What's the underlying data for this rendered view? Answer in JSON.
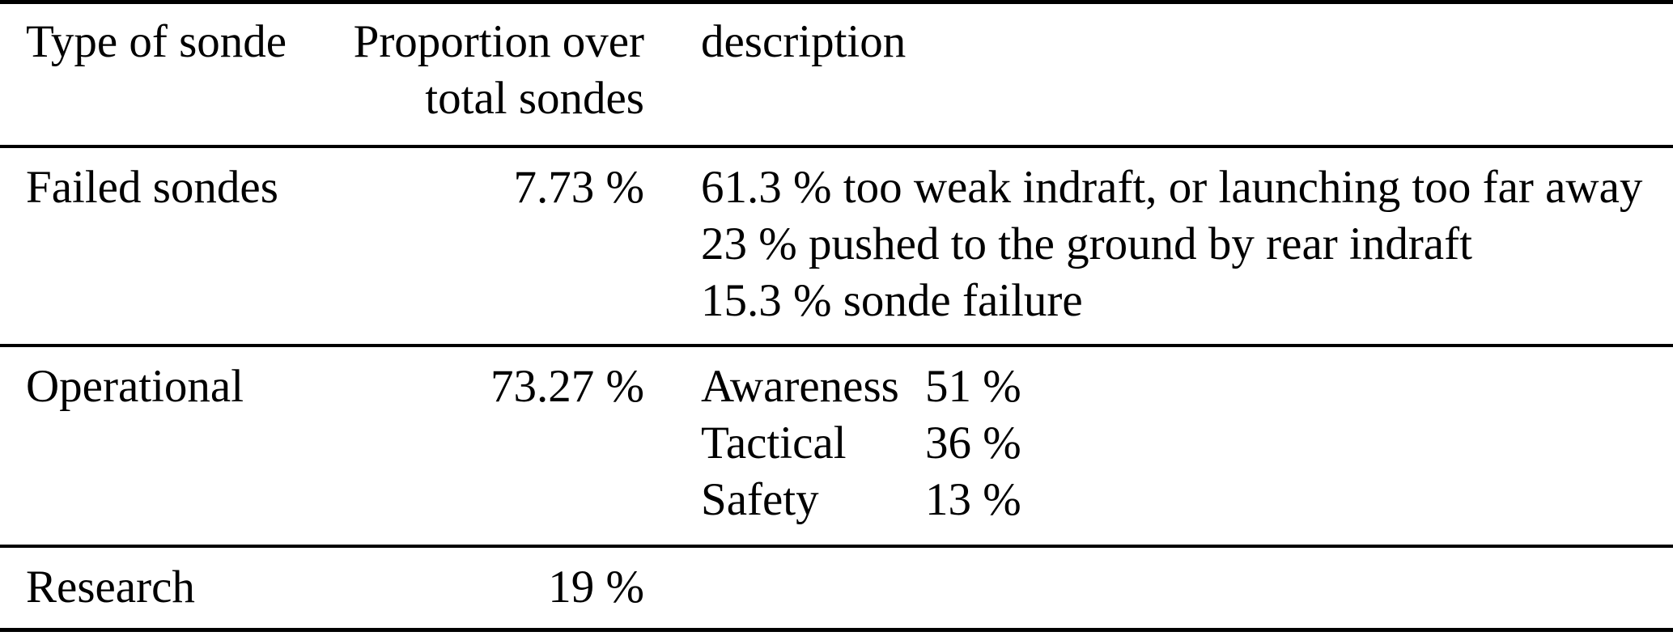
{
  "colors": {
    "text": "#000000",
    "background": "#ffffff",
    "rule": "#000000"
  },
  "table": {
    "header": {
      "type": "Type of sonde",
      "proportion_line1": "Proportion over",
      "proportion_line2": "total sondes",
      "description": "description"
    },
    "rows": [
      {
        "type": "Failed sondes",
        "proportion": "7.73 %",
        "description_lines": [
          "61.3 % too weak indraft, or launching too far away",
          "23 % pushed to the ground by rear indraft",
          "15.3 % sonde failure"
        ]
      },
      {
        "type": "Operational",
        "proportion": "73.27 %",
        "breakdown": [
          {
            "label": "Awareness",
            "value": "51 %"
          },
          {
            "label": "Tactical",
            "value": "36 %"
          },
          {
            "label": "Safety",
            "value": "13 %"
          }
        ]
      },
      {
        "type": "Research",
        "proportion": "19 %",
        "description_lines": []
      }
    ]
  }
}
